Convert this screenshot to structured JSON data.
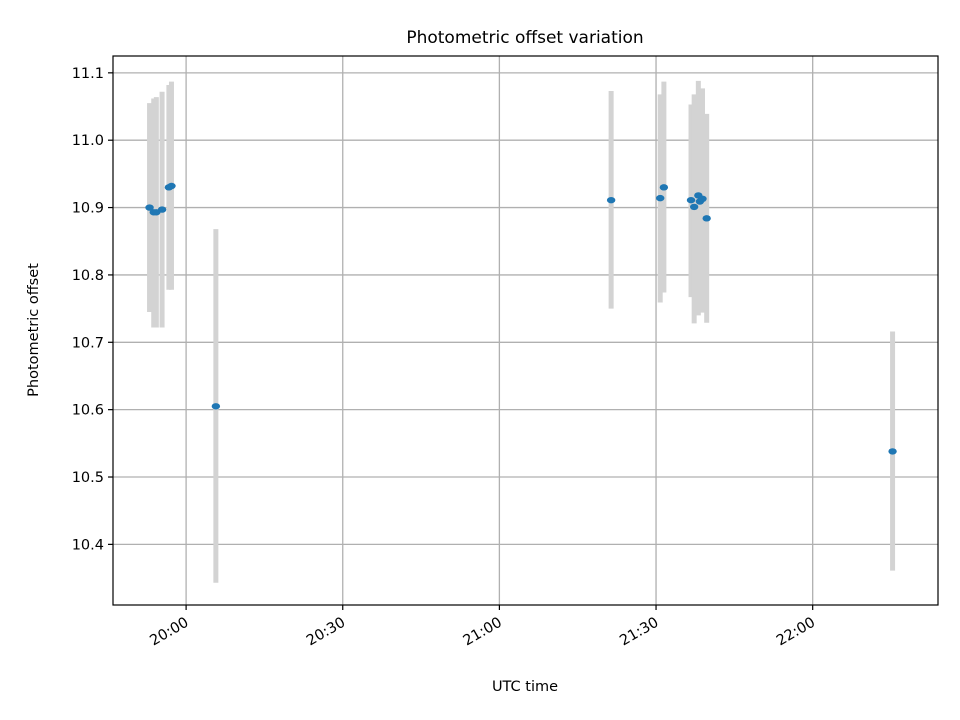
{
  "chart_data": {
    "type": "scatter",
    "title": "Photometric offset variation",
    "xlabel": "UTC time",
    "ylabel": "Photometric offset",
    "x_axis": "time",
    "xlim": [
      "19:46",
      "22:24"
    ],
    "ylim": [
      10.31,
      11.125
    ],
    "grid": true,
    "x_ticks": [
      "20:00",
      "20:30",
      "21:00",
      "21:30",
      "22:00"
    ],
    "y_ticks": [
      10.4,
      10.5,
      10.6,
      10.7,
      10.8,
      10.9,
      11.0,
      11.1
    ],
    "y_tick_labels": [
      "10.4",
      "10.5",
      "10.6",
      "10.7",
      "10.8",
      "10.9",
      "11.0",
      "11.1"
    ],
    "colors": {
      "point": "#1f77b4",
      "error_bar": "#d3d3d3",
      "grid": "#b0b0b0"
    },
    "series": [
      {
        "points": [
          {
            "x": "19:53.0",
            "y": 10.9,
            "yerr_low": 10.745,
            "yerr_high": 11.055
          },
          {
            "x": "19:53.8",
            "y": 10.893,
            "yerr_low": 10.722,
            "yerr_high": 11.062
          },
          {
            "x": "19:54.3",
            "y": 10.893,
            "yerr_low": 10.722,
            "yerr_high": 11.064
          },
          {
            "x": "19:55.4",
            "y": 10.897,
            "yerr_low": 10.722,
            "yerr_high": 11.072
          },
          {
            "x": "19:56.7",
            "y": 10.93,
            "yerr_low": 10.778,
            "yerr_high": 11.082
          },
          {
            "x": "19:57.2",
            "y": 10.932,
            "yerr_low": 10.778,
            "yerr_high": 11.087
          },
          {
            "x": "20:05.7",
            "y": 10.605,
            "yerr_low": 10.343,
            "yerr_high": 10.868
          },
          {
            "x": "21:21.4",
            "y": 10.911,
            "yerr_low": 10.75,
            "yerr_high": 11.073
          },
          {
            "x": "21:30.8",
            "y": 10.914,
            "yerr_low": 10.759,
            "yerr_high": 11.068
          },
          {
            "x": "21:31.5",
            "y": 10.93,
            "yerr_low": 10.774,
            "yerr_high": 11.087
          },
          {
            "x": "21:36.7",
            "y": 10.911,
            "yerr_low": 10.767,
            "yerr_high": 11.053
          },
          {
            "x": "21:37.3",
            "y": 10.901,
            "yerr_low": 10.728,
            "yerr_high": 11.068
          },
          {
            "x": "21:38.1",
            "y": 10.918,
            "yerr_low": 10.74,
            "yerr_high": 11.088
          },
          {
            "x": "21:38.4",
            "y": 10.909,
            "yerr_low": 10.748,
            "yerr_high": 11.071
          },
          {
            "x": "21:38.9",
            "y": 10.913,
            "yerr_low": 10.744,
            "yerr_high": 11.077
          },
          {
            "x": "21:39.7",
            "y": 10.884,
            "yerr_low": 10.729,
            "yerr_high": 11.039
          },
          {
            "x": "22:15.3",
            "y": 10.538,
            "yerr_low": 10.361,
            "yerr_high": 10.716
          }
        ]
      }
    ]
  }
}
